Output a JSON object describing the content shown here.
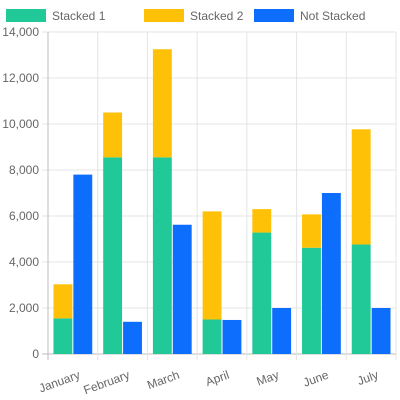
{
  "chart_data": {
    "type": "bar",
    "stacked_groups": [
      [
        "Stacked 1",
        "Stacked 2"
      ],
      [
        "Not Stacked"
      ]
    ],
    "categories": [
      "January",
      "February",
      "March",
      "April",
      "May",
      "June",
      "July"
    ],
    "series": [
      {
        "name": "Stacked 1",
        "stack": "a",
        "color": "#20c997",
        "values": [
          1550,
          8550,
          8550,
          1500,
          5280,
          4620,
          4760
        ]
      },
      {
        "name": "Stacked 2",
        "stack": "a",
        "color": "#ffc107",
        "values": [
          1480,
          1950,
          4700,
          4700,
          1020,
          1450,
          5010
        ]
      },
      {
        "name": "Not Stacked",
        "stack": "b",
        "color": "#0d6efd",
        "values": [
          7800,
          1400,
          5620,
          1480,
          2000,
          7000,
          2000
        ]
      }
    ],
    "ylim": [
      0,
      14000
    ],
    "yticks": [
      "0",
      "2,000",
      "4,000",
      "6,000",
      "8,000",
      "10,000",
      "12,000",
      "14,000"
    ],
    "ytick_values": [
      0,
      2000,
      4000,
      6000,
      8000,
      10000,
      12000,
      14000
    ],
    "grid": true,
    "legend_position": "top"
  }
}
